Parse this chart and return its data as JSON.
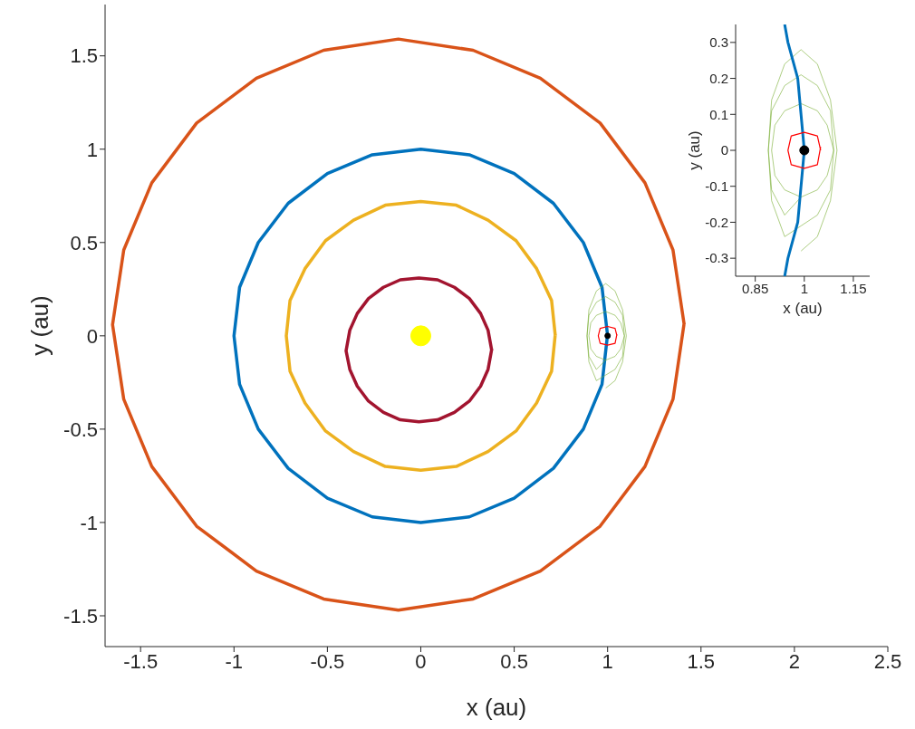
{
  "chart_data": [
    {
      "type": "line",
      "xlabel": "x (au)",
      "ylabel": "y (au)",
      "xlim": [
        -1.69,
        2.5
      ],
      "ylim": [
        -1.665,
        1.775
      ],
      "xticks": [
        -1.5,
        -1,
        -0.5,
        0,
        0.5,
        1,
        1.5,
        2,
        2.5
      ],
      "yticks": [
        -1.5,
        -1,
        -0.5,
        0,
        0.5,
        1,
        1.5
      ],
      "grid": false,
      "series": [
        {
          "type": "line",
          "color": "#d95319",
          "x": [
            1.41,
            1.35,
            1.2,
            0.96,
            0.64,
            0.28,
            -0.12,
            -0.52,
            -0.88,
            -1.2,
            -1.44,
            -1.59,
            -1.65,
            -1.59,
            -1.44,
            -1.2,
            -0.88,
            -0.52,
            -0.12,
            0.28,
            0.64,
            0.96,
            1.2,
            1.35,
            1.41
          ],
          "values": [
            0.06,
            0.46,
            0.82,
            1.14,
            1.38,
            1.53,
            1.59,
            1.53,
            1.38,
            1.14,
            0.82,
            0.46,
            0.06,
            -0.34,
            -0.7,
            -1.02,
            -1.26,
            -1.41,
            -1.47,
            -1.41,
            -1.26,
            -1.02,
            -0.7,
            -0.34,
            0.07
          ]
        },
        {
          "type": "line",
          "color": "#0072bd",
          "x": [
            1,
            0.97,
            0.87,
            0.71,
            0.5,
            0.26,
            0,
            -0.26,
            -0.5,
            -0.71,
            -0.87,
            -0.97,
            -1,
            -0.97,
            -0.87,
            -0.71,
            -0.5,
            -0.26,
            0,
            0.26,
            0.5,
            0.71,
            0.87,
            0.97,
            1
          ],
          "values": [
            0,
            0.26,
            0.5,
            0.71,
            0.87,
            0.97,
            1,
            0.97,
            0.87,
            0.71,
            0.5,
            0.26,
            0,
            -0.26,
            -0.5,
            -0.71,
            -0.87,
            -0.97,
            -1,
            -0.97,
            -0.87,
            -0.71,
            -0.5,
            -0.26,
            0.01
          ]
        },
        {
          "type": "line",
          "color": "#edb120",
          "x": [
            0.72,
            0.7,
            0.62,
            0.51,
            0.36,
            0.19,
            0,
            -0.19,
            -0.36,
            -0.51,
            -0.62,
            -0.7,
            -0.72,
            -0.7,
            -0.62,
            -0.51,
            -0.36,
            -0.19,
            0,
            0.19,
            0.36,
            0.51,
            0.62,
            0.7,
            0.72
          ],
          "values": [
            0,
            0.19,
            0.36,
            0.51,
            0.62,
            0.7,
            0.72,
            0.7,
            0.62,
            0.51,
            0.36,
            0.19,
            0,
            -0.19,
            -0.36,
            -0.51,
            -0.62,
            -0.7,
            -0.72,
            -0.7,
            -0.62,
            -0.51,
            -0.36,
            -0.19,
            0.01
          ]
        },
        {
          "type": "line",
          "color": "#a2142f",
          "x": [
            0.38,
            0.36,
            0.32,
            0.26,
            0.18,
            0.09,
            -0.01,
            -0.11,
            -0.2,
            -0.28,
            -0.34,
            -0.38,
            -0.4,
            -0.38,
            -0.34,
            -0.28,
            -0.2,
            -0.11,
            -0.01,
            0.09,
            0.18,
            0.26,
            0.32,
            0.36,
            0.38
          ],
          "values": [
            -0.08,
            0.03,
            0.12,
            0.2,
            0.26,
            0.3,
            0.31,
            0.3,
            0.26,
            0.2,
            0.12,
            0.03,
            -0.08,
            -0.18,
            -0.27,
            -0.35,
            -0.41,
            -0.45,
            -0.46,
            -0.45,
            -0.41,
            -0.35,
            -0.27,
            -0.18,
            -0.07
          ]
        },
        {
          "type": "line",
          "color": "#77ac30",
          "x": [
            0.99,
            1.04,
            1.08,
            1.1,
            1.08,
            1.04,
            0.99,
            0.94,
            0.9,
            0.89,
            0.9,
            0.94,
            0.99,
            1.04,
            1.08,
            1.09,
            1.08,
            1.04,
            0.99,
            0.94,
            0.9,
            0.89,
            0.9,
            0.94,
            0.99,
            1.04,
            1.07,
            1.09,
            1.07,
            1.04,
            0.99,
            0.94,
            0.91,
            0.9,
            0.91,
            0.94,
            0.99
          ],
          "values": [
            -0.28,
            -0.24,
            -0.14,
            0,
            0.14,
            0.24,
            0.28,
            0.24,
            0.14,
            0,
            -0.14,
            -0.24,
            -0.21,
            -0.18,
            -0.11,
            0,
            0.11,
            0.18,
            0.21,
            0.18,
            0.11,
            0,
            -0.11,
            -0.18,
            -0.13,
            -0.11,
            -0.07,
            0,
            0.07,
            0.11,
            0.13,
            0.11,
            0.07,
            0,
            -0.07,
            -0.11,
            -0.13
          ]
        },
        {
          "type": "line",
          "color": "#ff0000",
          "x": [
            1.05,
            1.04,
            1,
            0.96,
            0.95,
            0.96,
            1,
            1.04,
            1.05
          ],
          "values": [
            0,
            0.04,
            0.05,
            0.04,
            0,
            -0.04,
            -0.05,
            -0.04,
            0.01
          ]
        },
        {
          "type": "scatter",
          "marker": "circle",
          "color": "#ffff00",
          "x": [
            0
          ],
          "values": [
            0
          ]
        },
        {
          "type": "scatter",
          "marker": "circle",
          "color": "#000000",
          "x": [
            1
          ],
          "values": [
            0
          ]
        }
      ]
    },
    {
      "type": "line",
      "xlabel": "x (au)",
      "ylabel": "y (au)",
      "xlim": [
        0.79,
        1.2
      ],
      "ylim": [
        -0.35,
        0.35
      ],
      "xticks": [
        0.85,
        1,
        1.15
      ],
      "yticks": [
        -0.3,
        -0.2,
        -0.1,
        0,
        0.1,
        0.2,
        0.3
      ],
      "grid": false,
      "series": [
        {
          "type": "line",
          "color": "#77ac30",
          "x": [
            0.99,
            1.04,
            1.08,
            1.1,
            1.08,
            1.04,
            0.99,
            0.94,
            0.9,
            0.89,
            0.9,
            0.94,
            0.99,
            1.04,
            1.08,
            1.09,
            1.08,
            1.04,
            0.99,
            0.94,
            0.9,
            0.89,
            0.9,
            0.94,
            0.99,
            1.04,
            1.07,
            1.09,
            1.07,
            1.04,
            0.99,
            0.94,
            0.91,
            0.9,
            0.91,
            0.94,
            0.99
          ],
          "values": [
            -0.28,
            -0.24,
            -0.14,
            0,
            0.14,
            0.24,
            0.28,
            0.24,
            0.14,
            0,
            -0.14,
            -0.24,
            -0.21,
            -0.18,
            -0.11,
            0,
            0.11,
            0.18,
            0.21,
            0.18,
            0.11,
            0,
            -0.11,
            -0.18,
            -0.13,
            -0.11,
            -0.07,
            0,
            0.07,
            0.11,
            0.13,
            0.11,
            0.07,
            0,
            -0.07,
            -0.11,
            -0.13
          ]
        },
        {
          "type": "line",
          "color": "#0072bd",
          "x": [
            0.94,
            0.95,
            0.98,
            0.99,
            1,
            0.99,
            0.98,
            0.95,
            0.94
          ],
          "values": [
            -0.35,
            -0.3,
            -0.2,
            -0.1,
            0,
            0.1,
            0.2,
            0.3,
            0.35
          ]
        },
        {
          "type": "line",
          "color": "#ff0000",
          "x": [
            1.05,
            1.04,
            1,
            0.96,
            0.95,
            0.96,
            1,
            1.04,
            1.05
          ],
          "values": [
            0,
            0.04,
            0.05,
            0.04,
            0,
            -0.04,
            -0.05,
            -0.04,
            0.01
          ]
        },
        {
          "type": "scatter",
          "marker": "circle",
          "color": "#000000",
          "x": [
            1
          ],
          "values": [
            0
          ]
        }
      ]
    }
  ]
}
